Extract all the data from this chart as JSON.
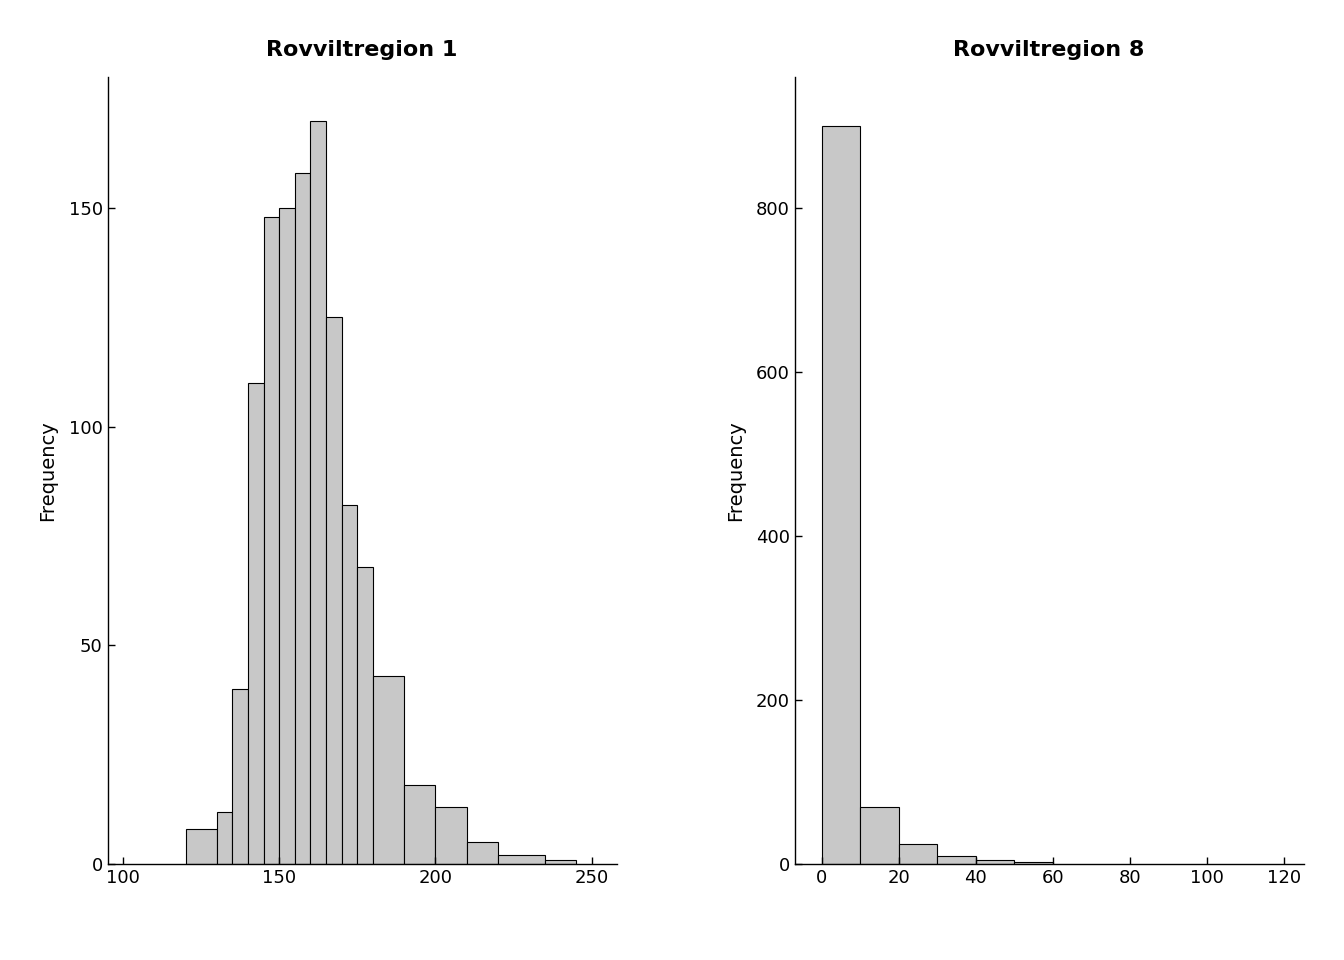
{
  "plot1": {
    "title": "Rovviltregion 1",
    "ylabel": "Frequency",
    "xlim": [
      95,
      258
    ],
    "ylim": [
      0,
      180
    ],
    "yticks": [
      0,
      50,
      100,
      150
    ],
    "xticks": [
      100,
      150,
      200,
      250
    ],
    "bar_edges": [
      120,
      130,
      135,
      140,
      145,
      150,
      155,
      160,
      165,
      170,
      175,
      180,
      190,
      200,
      210,
      220,
      235,
      245
    ],
    "bar_heights": [
      8,
      12,
      40,
      110,
      148,
      150,
      158,
      170,
      125,
      82,
      68,
      43,
      18,
      13,
      5,
      2,
      1
    ]
  },
  "plot2": {
    "title": "Rovviltregion 8",
    "ylabel": "Frequency",
    "xlim": [
      -7,
      125
    ],
    "ylim": [
      0,
      960
    ],
    "yticks": [
      0,
      200,
      400,
      600,
      800
    ],
    "xticks": [
      0,
      20,
      40,
      60,
      80,
      100,
      120
    ],
    "bar_edges": [
      0,
      10,
      20,
      30,
      40,
      50,
      60
    ],
    "bar_heights": [
      900,
      70,
      25,
      10,
      5,
      2
    ]
  },
  "bar_color": "#c8c8c8",
  "bar_edgecolor": "#000000",
  "background_color": "#ffffff",
  "title_fontsize": 16,
  "axis_fontsize": 14,
  "tick_fontsize": 13
}
